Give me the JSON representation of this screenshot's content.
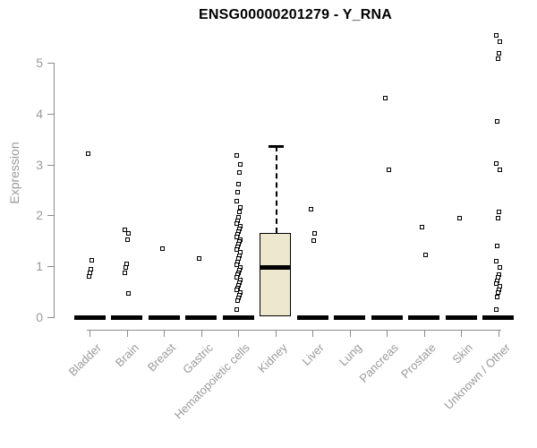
{
  "chart_data": {
    "type": "boxplot",
    "title": "ENSG00000201279 - Y_RNA",
    "ylabel": "Expression",
    "yticks": [
      0,
      1,
      2,
      3,
      4,
      5
    ],
    "ylim": [
      0,
      5.6
    ],
    "grid": false,
    "legend": false,
    "categories": [
      "Bladder",
      "Brain",
      "Breast",
      "Gastric",
      "Hematopoietic cells",
      "Kidney",
      "Liver",
      "Lung",
      "Pancreas",
      "Prostate",
      "Skin",
      "Unknown / Other"
    ],
    "groups": [
      {
        "category": "Bladder",
        "box": {
          "q1": 0,
          "median": 0,
          "q3": 0,
          "whisker_low": 0,
          "whisker_high": 0
        },
        "points": [
          3.22,
          1.12,
          0.95,
          0.87,
          0.8
        ]
      },
      {
        "category": "Brain",
        "box": {
          "q1": 0,
          "median": 0,
          "q3": 0,
          "whisker_low": 0,
          "whisker_high": 0
        },
        "points": [
          1.72,
          1.65,
          1.52,
          1.05,
          0.98,
          0.88,
          0.46
        ]
      },
      {
        "category": "Breast",
        "box": {
          "q1": 0,
          "median": 0,
          "q3": 0,
          "whisker_low": 0,
          "whisker_high": 0
        },
        "points": [
          1.35
        ]
      },
      {
        "category": "Gastric",
        "box": {
          "q1": 0,
          "median": 0,
          "q3": 0,
          "whisker_low": 0,
          "whisker_high": 0
        },
        "points": [
          1.15
        ]
      },
      {
        "category": "Hematopoietic cells",
        "box": {
          "q1": 0,
          "median": 0,
          "q3": 0,
          "whisker_low": 0,
          "whisker_high": 0
        },
        "points": [
          3.18,
          3.0,
          2.84,
          2.62,
          2.45,
          2.28,
          2.16,
          2.06,
          1.97,
          1.9,
          1.84,
          1.78,
          1.73,
          1.68,
          1.63,
          1.58,
          1.53,
          1.48,
          1.43,
          1.38,
          1.33,
          1.27,
          1.21,
          1.15,
          1.09,
          1.03,
          0.98,
          0.93,
          0.88,
          0.83,
          0.78,
          0.73,
          0.68,
          0.63,
          0.58,
          0.53,
          0.48,
          0.43,
          0.38,
          0.33,
          0.15
        ]
      },
      {
        "category": "Kidney",
        "box": {
          "q1": 0.02,
          "median": 0.97,
          "q3": 1.66,
          "whisker_low": 0.02,
          "whisker_high": 3.37
        },
        "points": []
      },
      {
        "category": "Liver",
        "box": {
          "q1": 0,
          "median": 0,
          "q3": 0,
          "whisker_low": 0,
          "whisker_high": 0
        },
        "points": [
          2.13,
          1.64,
          1.5
        ]
      },
      {
        "category": "Lung",
        "box": {
          "q1": 0,
          "median": 0,
          "q3": 0,
          "whisker_low": 0,
          "whisker_high": 0
        },
        "points": []
      },
      {
        "category": "Pancreas",
        "box": {
          "q1": 0,
          "median": 0,
          "q3": 0,
          "whisker_low": 0,
          "whisker_high": 0
        },
        "points": [
          4.3,
          2.9
        ]
      },
      {
        "category": "Prostate",
        "box": {
          "q1": 0,
          "median": 0,
          "q3": 0,
          "whisker_low": 0,
          "whisker_high": 0
        },
        "points": [
          1.77,
          1.23
        ]
      },
      {
        "category": "Skin",
        "box": {
          "q1": 0,
          "median": 0,
          "q3": 0,
          "whisker_low": 0,
          "whisker_high": 0
        },
        "points": [
          1.95
        ]
      },
      {
        "category": "Unknown / Other",
        "box": {
          "q1": 0,
          "median": 0,
          "q3": 0,
          "whisker_low": 0,
          "whisker_high": 0
        },
        "points": [
          5.53,
          5.42,
          5.19,
          5.08,
          3.85,
          3.02,
          2.89,
          2.07,
          1.95,
          1.4,
          1.1,
          0.97,
          0.84,
          0.78,
          0.72,
          0.66,
          0.6,
          0.54,
          0.48,
          0.4,
          0.15
        ]
      }
    ],
    "colors": {
      "box_fill": "#ece7cd",
      "box_border": "#000000",
      "marker": "#000000",
      "axis": "#8c8c8c",
      "tick_label": "#9a9a9a",
      "title": "#000000"
    }
  }
}
